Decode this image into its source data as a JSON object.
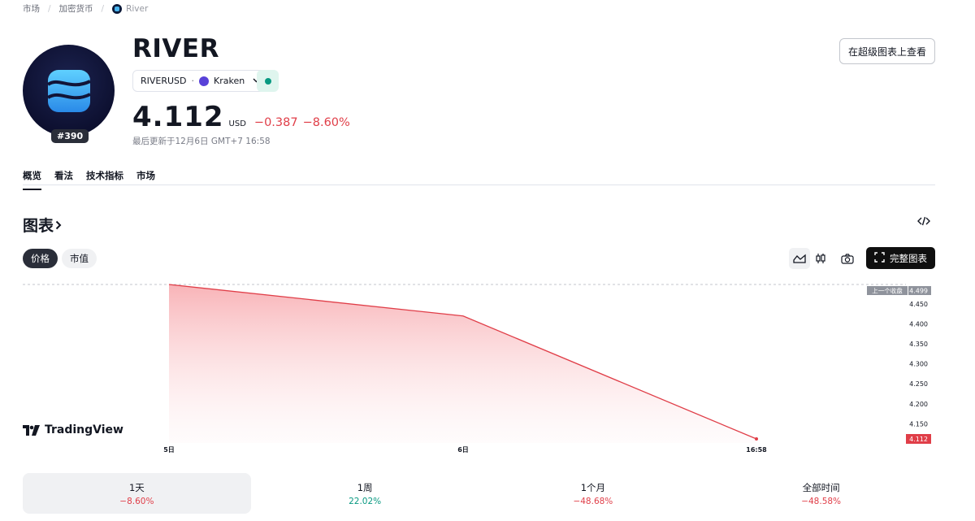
{
  "breadcrumb": {
    "market": "市场",
    "crypto": "加密货币",
    "current": "River"
  },
  "coin": {
    "name": "RIVER",
    "rank": "#390",
    "symbol": "RIVERUSD",
    "exchange": "Kraken",
    "price": "4.112",
    "currency": "USD",
    "change_abs": "−0.387",
    "change_pct": "−8.60%",
    "updated": "最后更新于12月6日 GMT+7 16:58"
  },
  "header": {
    "super_chart_label": "在超级图表上查看"
  },
  "tabs": [
    {
      "label": "概览"
    },
    {
      "label": "看法"
    },
    {
      "label": "技术指标"
    },
    {
      "label": "市场"
    }
  ],
  "chart_section": {
    "title": "图表",
    "pills": {
      "price": "价格",
      "market_cap": "市值"
    },
    "full_chart_label": "完整图表",
    "watermark": "TradingView"
  },
  "chart_data": {
    "type": "area",
    "x": [
      "5日",
      "6日",
      "16:58"
    ],
    "values": [
      4.499,
      4.42,
      4.112
    ],
    "ylim": [
      4.112,
      4.499
    ],
    "yticks": [
      "4.450",
      "4.400",
      "4.350",
      "4.300",
      "4.250",
      "4.200",
      "4.150"
    ],
    "prev_close_label": "上一个收盘",
    "prev_close_value": "4.499",
    "last_value": "4.112",
    "line_color": "#e03e48"
  },
  "periods": [
    {
      "label": "1天",
      "value": "−8.60%",
      "dir": "neg"
    },
    {
      "label": "1周",
      "value": "22.02%",
      "dir": "pos"
    },
    {
      "label": "1个月",
      "value": "−48.68%",
      "dir": "neg"
    },
    {
      "label": "全部时间",
      "value": "−48.58%",
      "dir": "neg"
    }
  ]
}
